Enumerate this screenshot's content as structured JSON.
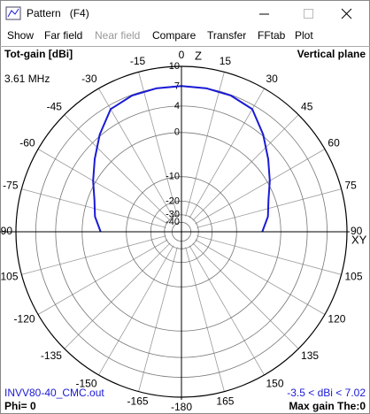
{
  "window": {
    "title": "Pattern   (F4)",
    "menu": [
      "Show",
      "Far field",
      "Near field",
      "Compare",
      "Transfer",
      "FFtab",
      "Plot"
    ]
  },
  "chart_data": {
    "type": "polar",
    "title": "Tot-gain [dBi]",
    "plane": "Vertical plane",
    "frequency": "3.61 MHz",
    "axis_top": "Z",
    "axis_right": "XY",
    "file": "INVV80-40_CMC.out",
    "phi": "Phi= 0",
    "range_text": "-3.5 < dBi < 7.02",
    "max_gain": "Max gain The:0",
    "rmax": 10,
    "rticks": [
      10,
      7,
      4,
      0,
      -10,
      -20,
      -30,
      -40
    ],
    "xticks": [
      0,
      15,
      30,
      45,
      60,
      75,
      90,
      105,
      120,
      135,
      150,
      165,
      -180,
      -165,
      -150,
      -135,
      -120,
      -105,
      -90,
      -75,
      -60,
      -45,
      -30,
      -15
    ],
    "x": [
      -90,
      -80,
      -70,
      -60,
      -50,
      -40,
      -30,
      -20,
      -10,
      0,
      10,
      20,
      30,
      40,
      50,
      60,
      70,
      80,
      90
    ],
    "series": [
      {
        "color": "#1a1ad6",
        "values": [
          -3.5,
          -2.1,
          -1.2,
          0.4,
          2.1,
          4.2,
          6.4,
          6.9,
          7.0,
          7.02,
          7.0,
          6.9,
          6.4,
          4.2,
          2.1,
          0.4,
          -1.2,
          -2.1,
          -3.5
        ]
      }
    ]
  }
}
